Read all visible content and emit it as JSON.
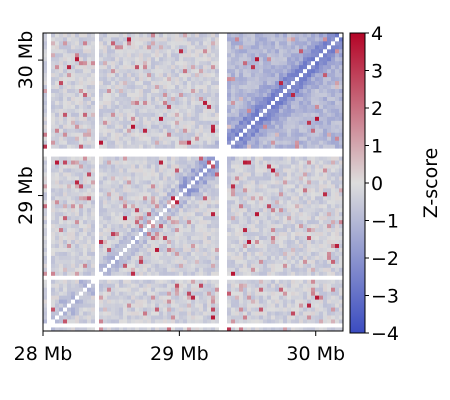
{
  "chart_data": {
    "type": "heatmap",
    "title": "",
    "xlabel": "",
    "ylabel": "",
    "x_ticks": [
      {
        "value": 28.0,
        "label": "28 Mb"
      },
      {
        "value": 29.0,
        "label": "29 Mb"
      },
      {
        "value": 30.0,
        "label": "30 Mb"
      }
    ],
    "y_ticks": [
      {
        "value": 29.0,
        "label": "29 Mb"
      },
      {
        "value": 30.0,
        "label": "30 Mb"
      }
    ],
    "xlim": [
      28.0,
      30.2
    ],
    "ylim": [
      28.0,
      30.2
    ],
    "y_axis_note": "y increases upward from bottom-left (28 Mb) to top (30.2 Mb); diagonal runs bottom-left to top-right",
    "bins": 75,
    "masked_regions_mb": [
      28.02,
      28.38,
      29.3,
      29.32
    ],
    "colorbar": {
      "label": "Z-score",
      "min": -4,
      "max": 4,
      "ticks": [
        4,
        3,
        2,
        1,
        0,
        -1,
        -2,
        -3,
        -4
      ],
      "tick_labels": [
        "4",
        "3",
        "2",
        "1",
        "0",
        "−1",
        "−2",
        "−3",
        "−4"
      ],
      "colormap": "coolwarm",
      "low_color": "#3b4cc0",
      "mid_color": "#dddddd",
      "high_color": "#b40426"
    },
    "notes": "Matrix is mostly near 0 (light grey/blue) with a stronger negative block (around -2 to -3) around 29.3–30.2 Mb near the diagonal, and scattered positive outliers (up to ~+4)."
  }
}
